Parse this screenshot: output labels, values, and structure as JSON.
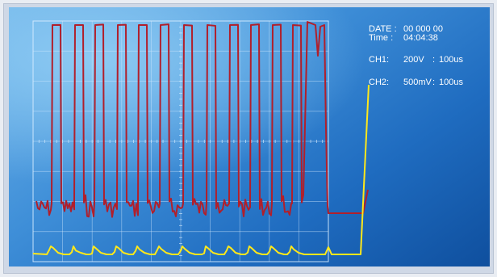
{
  "readout": {
    "date_label": "DATE :",
    "date_value": "00 000 00",
    "time_label": "Time :",
    "time_value": "04:04:38",
    "ch1_label": "CH1:",
    "ch1_volts": "200V",
    "ch1_sep": ":",
    "ch1_time": "100us",
    "ch2_label": "CH2:",
    "ch2_volts": "500mV",
    "ch2_sep": ":",
    "ch2_time": "100us"
  },
  "colors": {
    "ch1_trace": "#b11f2b",
    "ch2_trace": "#ffe81a",
    "grid": "#d6ecff",
    "readout_text": "#ffffff"
  },
  "grid": {
    "divisions_x": 10,
    "divisions_y": 8
  }
}
